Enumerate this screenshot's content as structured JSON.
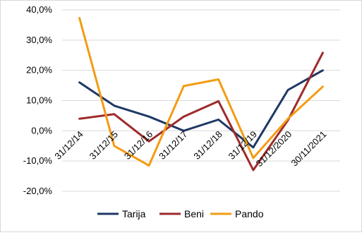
{
  "chart_data": {
    "type": "line",
    "title": "",
    "xlabel": "",
    "ylabel": "",
    "ylim": [
      -20,
      40
    ],
    "y_ticks": [
      40,
      30,
      20,
      10,
      0,
      -10,
      -20
    ],
    "y_tick_labels": [
      "40,0%",
      "30,0%",
      "20,0%",
      "10,0%",
      "0,0%",
      "-10,0%",
      "-20,0%"
    ],
    "grid": true,
    "legend_position": "bottom",
    "categories": [
      "31/12/14",
      "31/12/15",
      "31/12/16",
      "31/12/17",
      "31/12/18",
      "31/12/19",
      "31/12/2020",
      "30/11/2021"
    ],
    "series": [
      {
        "name": "Tarija",
        "color": "#1f3864",
        "values": [
          16.0,
          8.3,
          4.7,
          0.0,
          3.7,
          -5.5,
          13.5,
          20.0
        ]
      },
      {
        "name": "Beni",
        "color": "#9e2a2b",
        "values": [
          4.0,
          5.5,
          -3.5,
          4.7,
          9.8,
          -13.0,
          3.5,
          25.8
        ]
      },
      {
        "name": "Pando",
        "color": "#f39c12",
        "values": [
          37.3,
          -5.0,
          -11.5,
          14.8,
          17.0,
          -9.0,
          4.0,
          14.6
        ]
      }
    ]
  }
}
